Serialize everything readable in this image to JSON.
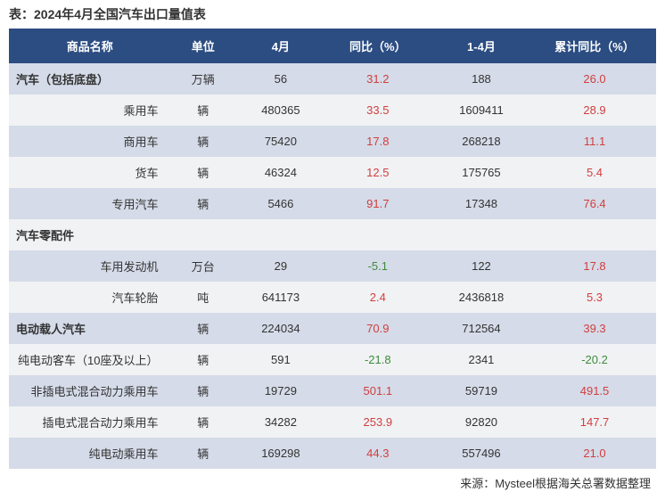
{
  "title": "表：2024年4月全国汽车出口量值表",
  "source": "来源：Mysteel根据海关总署数据整理",
  "colors": {
    "header_bg": "#2c4d82",
    "row_odd": "#d5dbe8",
    "row_even": "#f1f2f4",
    "pos": "#d13f3f",
    "neg": "#3e8c3e"
  },
  "columns": [
    "商品名称",
    "单位",
    "4月",
    "同比（%）",
    "1-4月",
    "累计同比（%）"
  ],
  "rows": [
    {
      "section": true,
      "name": "汽车（包括底盘）",
      "unit": "万辆",
      "m": "56",
      "yoy": "31.2",
      "yoy_dir": "pos",
      "cum": "188",
      "cyoy": "26.0",
      "cyoy_dir": "pos"
    },
    {
      "section": false,
      "name": "乘用车",
      "unit": "辆",
      "m": "480365",
      "yoy": "33.5",
      "yoy_dir": "pos",
      "cum": "1609411",
      "cyoy": "28.9",
      "cyoy_dir": "pos"
    },
    {
      "section": false,
      "name": "商用车",
      "unit": "辆",
      "m": "75420",
      "yoy": "17.8",
      "yoy_dir": "pos",
      "cum": "268218",
      "cyoy": "11.1",
      "cyoy_dir": "pos"
    },
    {
      "section": false,
      "name": "货车",
      "unit": "辆",
      "m": "46324",
      "yoy": "12.5",
      "yoy_dir": "pos",
      "cum": "175765",
      "cyoy": "5.4",
      "cyoy_dir": "pos"
    },
    {
      "section": false,
      "name": "专用汽车",
      "unit": "辆",
      "m": "5466",
      "yoy": "91.7",
      "yoy_dir": "pos",
      "cum": "17348",
      "cyoy": "76.4",
      "cyoy_dir": "pos"
    },
    {
      "section": true,
      "name": "汽车零配件",
      "unit": "",
      "m": "",
      "yoy": "",
      "yoy_dir": "",
      "cum": "",
      "cyoy": "",
      "cyoy_dir": ""
    },
    {
      "section": false,
      "name": "车用发动机",
      "unit": "万台",
      "m": "29",
      "yoy": "-5.1",
      "yoy_dir": "neg",
      "cum": "122",
      "cyoy": "17.8",
      "cyoy_dir": "pos"
    },
    {
      "section": false,
      "name": "汽车轮胎",
      "unit": "吨",
      "m": "641173",
      "yoy": "2.4",
      "yoy_dir": "pos",
      "cum": "2436818",
      "cyoy": "5.3",
      "cyoy_dir": "pos"
    },
    {
      "section": true,
      "name": "电动载人汽车",
      "unit": "辆",
      "m": "224034",
      "yoy": "70.9",
      "yoy_dir": "pos",
      "cum": "712564",
      "cyoy": "39.3",
      "cyoy_dir": "pos"
    },
    {
      "section": false,
      "name": "纯电动客车（10座及以上）",
      "unit": "辆",
      "m": "591",
      "yoy": "-21.8",
      "yoy_dir": "neg",
      "cum": "2341",
      "cyoy": "-20.2",
      "cyoy_dir": "neg"
    },
    {
      "section": false,
      "name": "非插电式混合动力乘用车",
      "unit": "辆",
      "m": "19729",
      "yoy": "501.1",
      "yoy_dir": "pos",
      "cum": "59719",
      "cyoy": "491.5",
      "cyoy_dir": "pos"
    },
    {
      "section": false,
      "name": "插电式混合动力乘用车",
      "unit": "辆",
      "m": "34282",
      "yoy": "253.9",
      "yoy_dir": "pos",
      "cum": "92820",
      "cyoy": "147.7",
      "cyoy_dir": "pos"
    },
    {
      "section": false,
      "name": "纯电动乘用车",
      "unit": "辆",
      "m": "169298",
      "yoy": "44.3",
      "yoy_dir": "pos",
      "cum": "557496",
      "cyoy": "21.0",
      "cyoy_dir": "pos"
    }
  ]
}
